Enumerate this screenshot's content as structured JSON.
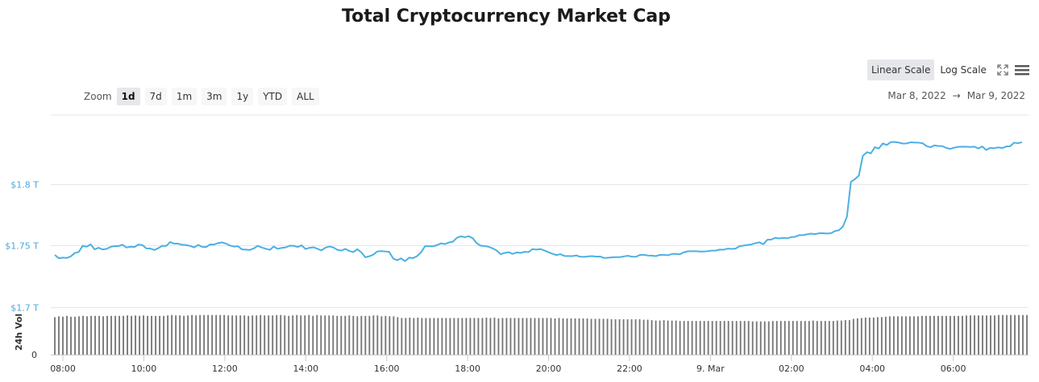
{
  "title": "Total Cryptocurrency Market Cap",
  "controls": {
    "scale_buttons": [
      "Linear Scale",
      "Log Scale"
    ],
    "active_scale": "Linear Scale",
    "fullscreen_icon": "fullscreen-icon",
    "menu_icon": "hamburger-menu-icon",
    "zoom_label": "Zoom",
    "zoom_buttons": [
      "1d",
      "7d",
      "1m",
      "3m",
      "1y",
      "YTD",
      "ALL"
    ],
    "active_zoom": "1d",
    "range_from": "Mar 8, 2022",
    "range_arrow": "→",
    "range_to": "Mar 9, 2022"
  },
  "colors": {
    "line": "#4bb0e4",
    "volume": "#737373",
    "grid": "#e6e6e6",
    "ytick": "#4aa9dd"
  },
  "chart_data": {
    "type": "line",
    "title": "Total Cryptocurrency Market Cap",
    "xlabel": "",
    "ylabel": "",
    "x_tick_labels": [
      "08:00",
      "10:00",
      "12:00",
      "14:00",
      "16:00",
      "18:00",
      "20:00",
      "22:00",
      "9. Mar",
      "02:00",
      "04:00",
      "06:00"
    ],
    "x_start_hour": 7.8,
    "x_end_hour": 31.7,
    "y_tick_labels": [
      "$1.7 T",
      "$1.75 T",
      "$1.8 T"
    ],
    "y_ticks": [
      1.7,
      1.75,
      1.8
    ],
    "ylim": [
      1.7,
      1.8562
    ],
    "series": [
      {
        "name": "",
        "unit": "T USD",
        "values": [
          1.7425,
          1.7398,
          1.7403,
          1.74,
          1.7413,
          1.744,
          1.7449,
          1.7499,
          1.7492,
          1.7511,
          1.747,
          1.7483,
          1.7469,
          1.7474,
          1.749,
          1.7497,
          1.7497,
          1.7508,
          1.7485,
          1.7492,
          1.7489,
          1.7509,
          1.7505,
          1.7478,
          1.7477,
          1.7465,
          1.748,
          1.7499,
          1.7498,
          1.753,
          1.7516,
          1.7516,
          1.7507,
          1.7505,
          1.7498,
          1.7486,
          1.7506,
          1.7491,
          1.7488,
          1.751,
          1.7509,
          1.7521,
          1.7526,
          1.7517,
          1.7501,
          1.7493,
          1.7496,
          1.747,
          1.7468,
          1.7465,
          1.7478,
          1.7499,
          1.7485,
          1.7475,
          1.7466,
          1.7493,
          1.7475,
          1.7482,
          1.7486,
          1.75,
          1.7499,
          1.749,
          1.7503,
          1.7473,
          1.7483,
          1.7487,
          1.7474,
          1.7462,
          1.7484,
          1.7494,
          1.7485,
          1.7466,
          1.746,
          1.7474,
          1.7457,
          1.7448,
          1.7471,
          1.7446,
          1.7406,
          1.7414,
          1.7427,
          1.7453,
          1.7456,
          1.7453,
          1.745,
          1.7396,
          1.7382,
          1.7397,
          1.7374,
          1.7403,
          1.7399,
          1.7415,
          1.7445,
          1.7496,
          1.7496,
          1.7495,
          1.7504,
          1.7519,
          1.7513,
          1.7526,
          1.7532,
          1.7564,
          1.7576,
          1.7569,
          1.7577,
          1.756,
          1.752,
          1.75,
          1.7497,
          1.7491,
          1.7478,
          1.7461,
          1.7431,
          1.7441,
          1.7447,
          1.7433,
          1.7445,
          1.7441,
          1.745,
          1.7448,
          1.7472,
          1.7468,
          1.7473,
          1.7461,
          1.7447,
          1.7434,
          1.7424,
          1.7431,
          1.7417,
          1.7416,
          1.7415,
          1.7421,
          1.741,
          1.7409,
          1.7413,
          1.7415,
          1.7411,
          1.7412,
          1.74,
          1.7402,
          1.7405,
          1.7407,
          1.7407,
          1.7413,
          1.7418,
          1.7411,
          1.741,
          1.7425,
          1.7426,
          1.742,
          1.7419,
          1.7415,
          1.7425,
          1.7426,
          1.7422,
          1.7432,
          1.7434,
          1.743,
          1.7446,
          1.7454,
          1.7455,
          1.7455,
          1.7453,
          1.7453,
          1.7455,
          1.746,
          1.746,
          1.7468,
          1.7467,
          1.7476,
          1.7474,
          1.7476,
          1.7496,
          1.7501,
          1.7506,
          1.751,
          1.752,
          1.7527,
          1.7512,
          1.7548,
          1.755,
          1.7564,
          1.7559,
          1.7564,
          1.756,
          1.757,
          1.7572,
          1.7586,
          1.7586,
          1.7592,
          1.7598,
          1.7594,
          1.7601,
          1.7601,
          1.7599,
          1.7601,
          1.7619,
          1.7626,
          1.7656,
          1.7736,
          1.8019,
          1.804,
          1.807,
          1.823,
          1.826,
          1.825,
          1.83,
          1.829,
          1.8331,
          1.8318,
          1.8341,
          1.8343,
          1.8338,
          1.833,
          1.8331,
          1.834,
          1.8338,
          1.8337,
          1.8333,
          1.8309,
          1.83,
          1.8315,
          1.831,
          1.8309,
          1.8293,
          1.8287,
          1.8297,
          1.8303,
          1.8305,
          1.8304,
          1.8302,
          1.8305,
          1.829,
          1.8306,
          1.8278,
          1.8295,
          1.8292,
          1.8299,
          1.8293,
          1.8306,
          1.8308,
          1.8337,
          1.8333,
          1.8341
        ]
      },
      {
        "name": "24h Vol",
        "unit": "relative",
        "values": [
          0.88,
          0.9,
          0.89,
          0.91,
          0.89,
          0.89,
          0.9,
          0.91,
          0.9,
          0.91,
          0.91,
          0.91,
          0.9,
          0.91,
          0.91,
          0.91,
          0.91,
          0.91,
          0.92,
          0.91,
          0.92,
          0.91,
          0.92,
          0.91,
          0.91,
          0.91,
          0.91,
          0.91,
          0.92,
          0.93,
          0.92,
          0.92,
          0.91,
          0.92,
          0.93,
          0.92,
          0.93,
          0.93,
          0.93,
          0.93,
          0.93,
          0.93,
          0.93,
          0.92,
          0.92,
          0.92,
          0.92,
          0.92,
          0.91,
          0.92,
          0.92,
          0.93,
          0.92,
          0.92,
          0.92,
          0.93,
          0.93,
          0.92,
          0.91,
          0.92,
          0.93,
          0.92,
          0.92,
          0.93,
          0.91,
          0.93,
          0.92,
          0.92,
          0.92,
          0.92,
          0.91,
          0.91,
          0.91,
          0.92,
          0.91,
          0.9,
          0.91,
          0.91,
          0.91,
          0.92,
          0.92,
          0.9,
          0.91,
          0.9,
          0.9,
          0.88,
          0.86,
          0.86,
          0.87,
          0.86,
          0.87,
          0.86,
          0.86,
          0.86,
          0.86,
          0.86,
          0.86,
          0.86,
          0.86,
          0.86,
          0.86,
          0.86,
          0.86,
          0.86,
          0.86,
          0.86,
          0.86,
          0.87,
          0.86,
          0.87,
          0.85,
          0.86,
          0.86,
          0.86,
          0.86,
          0.86,
          0.86,
          0.86,
          0.86,
          0.86,
          0.86,
          0.86,
          0.86,
          0.86,
          0.85,
          0.86,
          0.85,
          0.85,
          0.85,
          0.85,
          0.85,
          0.85,
          0.85,
          0.84,
          0.84,
          0.84,
          0.84,
          0.84,
          0.83,
          0.83,
          0.83,
          0.83,
          0.83,
          0.83,
          0.83,
          0.83,
          0.82,
          0.82,
          0.81,
          0.8,
          0.8,
          0.81,
          0.8,
          0.8,
          0.8,
          0.79,
          0.79,
          0.79,
          0.79,
          0.79,
          0.79,
          0.79,
          0.79,
          0.79,
          0.79,
          0.79,
          0.79,
          0.79,
          0.79,
          0.79,
          0.79,
          0.79,
          0.79,
          0.78,
          0.78,
          0.78,
          0.78,
          0.78,
          0.79,
          0.79,
          0.79,
          0.79,
          0.79,
          0.79,
          0.79,
          0.79,
          0.79,
          0.79,
          0.8,
          0.79,
          0.79,
          0.79,
          0.79,
          0.79,
          0.8,
          0.8,
          0.81,
          0.81,
          0.84,
          0.85,
          0.86,
          0.87,
          0.87,
          0.87,
          0.88,
          0.88,
          0.89,
          0.9,
          0.9,
          0.9,
          0.9,
          0.9,
          0.9,
          0.9,
          0.9,
          0.91,
          0.91,
          0.91,
          0.91,
          0.91,
          0.91,
          0.91,
          0.91,
          0.91,
          0.91,
          0.91,
          0.92,
          0.92,
          0.92,
          0.92,
          0.92,
          0.92,
          0.92,
          0.92,
          0.93,
          0.93,
          0.93,
          0.93,
          0.93,
          0.93,
          0.93,
          0.93
        ]
      }
    ],
    "volume_axis_label": "24h Vol",
    "volume_axis_tick": "0",
    "grid": true,
    "legend": "none"
  }
}
